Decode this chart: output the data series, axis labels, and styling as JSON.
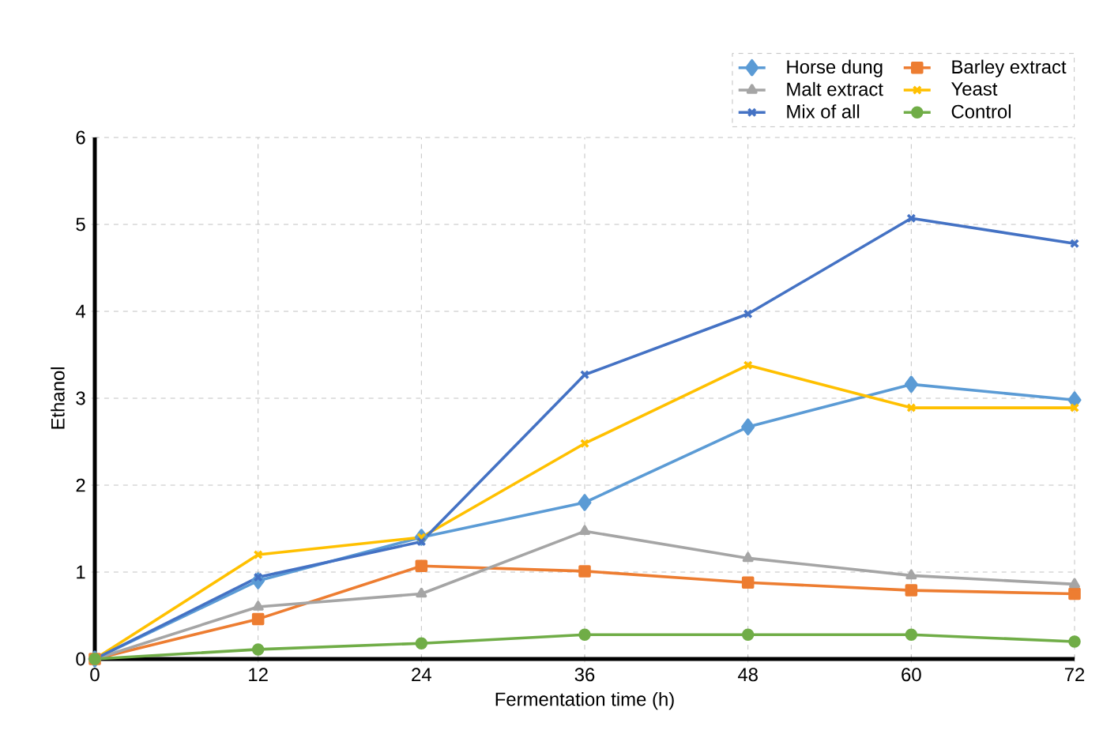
{
  "chart_data": {
    "type": "line",
    "xlabel": "Fermentation time (h)",
    "ylabel": "Ethanol",
    "x": [
      0,
      12,
      24,
      36,
      48,
      60,
      72
    ],
    "xlim": [
      0,
      72
    ],
    "xticks": [
      0,
      12,
      24,
      36,
      48,
      60,
      72
    ],
    "ylim": [
      0,
      6
    ],
    "yticks": [
      0,
      1,
      2,
      3,
      4,
      5,
      6
    ],
    "grid": true,
    "legend": "top right",
    "series": [
      {
        "name": "Horse dung",
        "color": "#5b9bd5",
        "marker": "diamond",
        "values": [
          0,
          0.9,
          1.4,
          1.8,
          2.67,
          3.16,
          2.98
        ]
      },
      {
        "name": "Barley  extract",
        "color": "#ed7d31",
        "marker": "square",
        "values": [
          0,
          0.46,
          1.07,
          1.01,
          0.88,
          0.79,
          0.75
        ]
      },
      {
        "name": "Malt extract",
        "color": "#a5a5a5",
        "marker": "triangle",
        "values": [
          0,
          0.6,
          0.75,
          1.47,
          1.16,
          0.96,
          0.86
        ]
      },
      {
        "name": "Yeast",
        "color": "#ffc000",
        "marker": "cross",
        "values": [
          0,
          1.2,
          1.4,
          2.48,
          3.38,
          2.89,
          2.89
        ]
      },
      {
        "name": "Mix of all",
        "color": "#4472c4",
        "marker": "cross",
        "values": [
          0,
          0.94,
          1.35,
          3.27,
          3.97,
          5.07,
          4.78
        ]
      },
      {
        "name": "Control",
        "color": "#70ad47",
        "marker": "circle",
        "values": [
          0,
          0.11,
          0.18,
          0.28,
          0.28,
          0.28,
          0.2
        ]
      }
    ]
  }
}
